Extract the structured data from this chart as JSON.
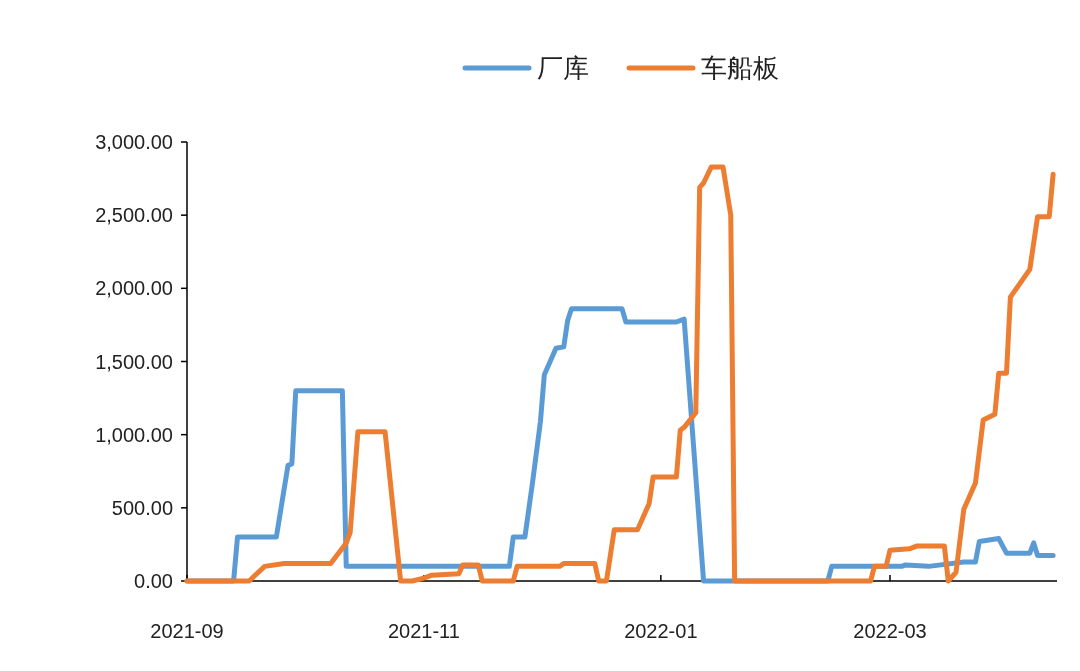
{
  "chart_data": {
    "type": "line",
    "xlim": [
      "2021-09-01",
      "2022-04-13"
    ],
    "xticks": [
      "2021-09",
      "2021-11",
      "2022-01",
      "2022-03"
    ],
    "ylim": [
      0,
      3000
    ],
    "yticks": [
      {
        "value": 0,
        "label": "0.00"
      },
      {
        "value": 500,
        "label": "500.00"
      },
      {
        "value": 1000,
        "label": "1,000.00"
      },
      {
        "value": 1500,
        "label": "1,500.00"
      },
      {
        "value": 2000,
        "label": "2,000.00"
      },
      {
        "value": 2500,
        "label": "2,500.00"
      },
      {
        "value": 3000,
        "label": "3,000.00"
      }
    ],
    "legend": "top",
    "series": [
      {
        "name": "厂库",
        "color": "#5b9bd5",
        "x": [
          "2021-09-01",
          "2021-09-13",
          "2021-09-14",
          "2021-09-24",
          "2021-09-27",
          "2021-09-28",
          "2021-09-29",
          "2021-10-11",
          "2021-10-12",
          "2021-11-23",
          "2021-11-24",
          "2021-11-27",
          "2021-11-29",
          "2021-12-01",
          "2021-12-02",
          "2021-12-05",
          "2021-12-07",
          "2021-12-08",
          "2021-12-09",
          "2021-12-22",
          "2021-12-23",
          "2022-01-05",
          "2022-01-07",
          "2022-01-12",
          "2022-02-13",
          "2022-02-14",
          "2022-03-04",
          "2022-03-05",
          "2022-03-11",
          "2022-03-20",
          "2022-03-23",
          "2022-03-24",
          "2022-03-29",
          "2022-03-31",
          "2022-04-06",
          "2022-04-07",
          "2022-04-08",
          "2022-04-12"
        ],
        "values": [
          0,
          0,
          300,
          300,
          790,
          800,
          1300,
          1300,
          100,
          100,
          300,
          300,
          680,
          1090,
          1410,
          1590,
          1600,
          1780,
          1860,
          1860,
          1770,
          1770,
          1790,
          0,
          0,
          100,
          100,
          110,
          100,
          130,
          130,
          270,
          290,
          190,
          190,
          260,
          175,
          175
        ]
      },
      {
        "name": "车船板",
        "color": "#ed7d31",
        "x": [
          "2021-09-01",
          "2021-09-17",
          "2021-09-21",
          "2021-09-26",
          "2021-10-08",
          "2021-10-12",
          "2021-10-13",
          "2021-10-15",
          "2021-10-22",
          "2021-10-26",
          "2021-10-29",
          "2021-11-01",
          "2021-11-03",
          "2021-11-10",
          "2021-11-11",
          "2021-11-15",
          "2021-11-16",
          "2021-11-24",
          "2021-11-25",
          "2021-12-06",
          "2021-12-07",
          "2021-12-15",
          "2021-12-16",
          "2021-12-18",
          "2021-12-20",
          "2021-12-26",
          "2021-12-29",
          "2021-12-30",
          "2022-01-05",
          "2022-01-06",
          "2022-01-07",
          "2022-01-10",
          "2022-01-11",
          "2022-01-12",
          "2022-01-14",
          "2022-01-17",
          "2022-01-19",
          "2022-01-20",
          "2022-02-24",
          "2022-02-25",
          "2022-02-28",
          "2022-03-01",
          "2022-03-06",
          "2022-03-08",
          "2022-03-15",
          "2022-03-16",
          "2022-03-18",
          "2022-03-20",
          "2022-03-23",
          "2022-03-25",
          "2022-03-28",
          "2022-03-29",
          "2022-03-31",
          "2022-04-01",
          "2022-04-06",
          "2022-04-08",
          "2022-04-11",
          "2022-04-12"
        ],
        "values": [
          0,
          0,
          100,
          120,
          120,
          260,
          330,
          1020,
          1020,
          0,
          0,
          20,
          40,
          50,
          110,
          110,
          0,
          0,
          100,
          100,
          120,
          120,
          0,
          0,
          350,
          350,
          530,
          710,
          710,
          1030,
          1050,
          1150,
          2690,
          2720,
          2830,
          2830,
          2500,
          0,
          0,
          100,
          100,
          210,
          220,
          240,
          240,
          0,
          60,
          490,
          670,
          1100,
          1140,
          1420,
          1420,
          1940,
          2130,
          2490,
          2490,
          2780
        ]
      }
    ]
  }
}
